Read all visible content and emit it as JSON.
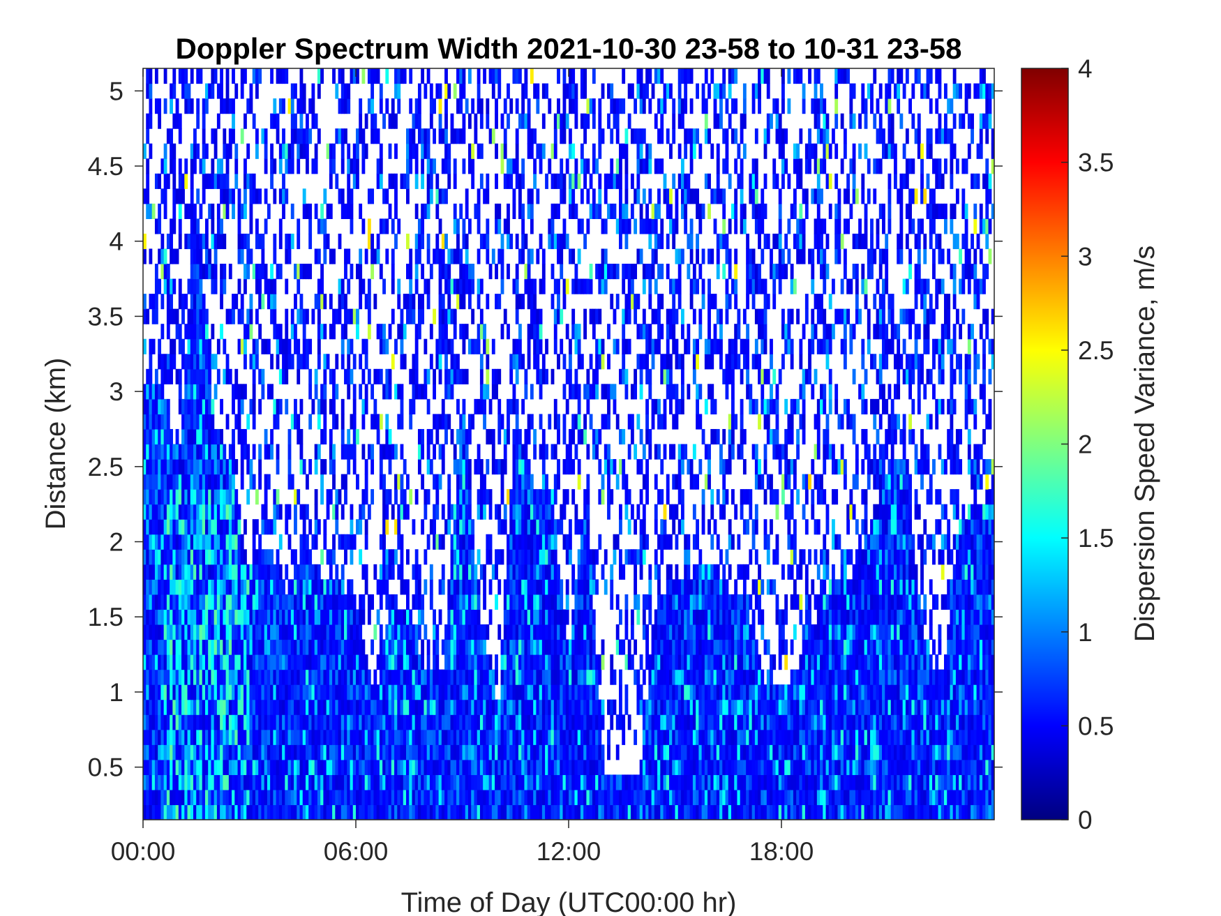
{
  "chart_data": {
    "type": "heatmap",
    "title": "Doppler Spectrum Width 2021-10-30 23-58 to 10-31 23-58",
    "xlabel": "Time of Day (UTC00:00 hr)",
    "ylabel": "Distance (km)",
    "colorbar_label": "Dispersion Speed Variance, m/s",
    "colormap": "jet",
    "xlim_hours": [
      0,
      24
    ],
    "ylim_km": [
      0.15,
      5.15
    ],
    "clim": [
      0,
      4
    ],
    "x_ticks": [
      {
        "hour": 0,
        "label": "00:00"
      },
      {
        "hour": 6,
        "label": "06:00"
      },
      {
        "hour": 12,
        "label": "12:00"
      },
      {
        "hour": 18,
        "label": "18:00"
      }
    ],
    "y_ticks": [
      {
        "value": 0.5,
        "label": "0.5"
      },
      {
        "value": 1,
        "label": "1"
      },
      {
        "value": 1.5,
        "label": "1.5"
      },
      {
        "value": 2,
        "label": "2"
      },
      {
        "value": 2.5,
        "label": "2.5"
      },
      {
        "value": 3,
        "label": "3"
      },
      {
        "value": 3.5,
        "label": "3.5"
      },
      {
        "value": 4,
        "label": "4"
      },
      {
        "value": 4.5,
        "label": "4.5"
      },
      {
        "value": 5,
        "label": "5"
      }
    ],
    "colorbar_ticks": [
      {
        "value": 0,
        "label": "0"
      },
      {
        "value": 0.5,
        "label": "0.5"
      },
      {
        "value": 1,
        "label": "1"
      },
      {
        "value": 1.5,
        "label": "1.5"
      },
      {
        "value": 2,
        "label": "2"
      },
      {
        "value": 2.5,
        "label": "2.5"
      },
      {
        "value": 3,
        "label": "3"
      },
      {
        "value": 3.5,
        "label": "3.5"
      },
      {
        "value": 4,
        "label": "4"
      }
    ],
    "dense_layer_top_km_by_hour": [
      {
        "hour": 0,
        "top": 3.05
      },
      {
        "hour": 0.5,
        "top": 3.1
      },
      {
        "hour": 1,
        "top": 2.5
      },
      {
        "hour": 1.5,
        "top": 4.3
      },
      {
        "hour": 2,
        "top": 2.8
      },
      {
        "hour": 2.5,
        "top": 2.5
      },
      {
        "hour": 3,
        "top": 1.8
      },
      {
        "hour": 3.5,
        "top": 2.0
      },
      {
        "hour": 4,
        "top": 1.6
      },
      {
        "hour": 4.5,
        "top": 2.0
      },
      {
        "hour": 5,
        "top": 1.75
      },
      {
        "hour": 5.5,
        "top": 1.75
      },
      {
        "hour": 6,
        "top": 1.6
      },
      {
        "hour": 6.5,
        "top": 0.9
      },
      {
        "hour": 7,
        "top": 1.6
      },
      {
        "hour": 7.5,
        "top": 1.5
      },
      {
        "hour": 8,
        "top": 1.1
      },
      {
        "hour": 8.5,
        "top": 1.2
      },
      {
        "hour": 9,
        "top": 3.0
      },
      {
        "hour": 9.5,
        "top": 1.5
      },
      {
        "hour": 10,
        "top": 0.8
      },
      {
        "hour": 10.5,
        "top": 2.9
      },
      {
        "hour": 11,
        "top": 2.4
      },
      {
        "hour": 11.5,
        "top": 2.3
      },
      {
        "hour": 12,
        "top": 1.3
      },
      {
        "hour": 12.5,
        "top": 2.4
      },
      {
        "hour": 13,
        "top": 0.45
      },
      {
        "hour": 13.5,
        "top": 0.45
      },
      {
        "hour": 14,
        "top": 0.45
      },
      {
        "hour": 14.5,
        "top": 1.6
      },
      {
        "hour": 15,
        "top": 1.8
      },
      {
        "hour": 15.5,
        "top": 1.8
      },
      {
        "hour": 16,
        "top": 1.9
      },
      {
        "hour": 16.5,
        "top": 1.7
      },
      {
        "hour": 17,
        "top": 1.6
      },
      {
        "hour": 17.5,
        "top": 1.1
      },
      {
        "hour": 18,
        "top": 1.0
      },
      {
        "hour": 18.5,
        "top": 1.2
      },
      {
        "hour": 19,
        "top": 1.5
      },
      {
        "hour": 19.5,
        "top": 1.8
      },
      {
        "hour": 20,
        "top": 1.75
      },
      {
        "hour": 20.5,
        "top": 2.1
      },
      {
        "hour": 21,
        "top": 2.5
      },
      {
        "hour": 21.5,
        "top": 2.6
      },
      {
        "hour": 22,
        "top": 1.3
      },
      {
        "hour": 22.5,
        "top": 1.0
      },
      {
        "hour": 23,
        "top": 2.1
      },
      {
        "hour": 23.5,
        "top": 2.3
      },
      {
        "hour": 24,
        "top": 2.3
      }
    ]
  }
}
